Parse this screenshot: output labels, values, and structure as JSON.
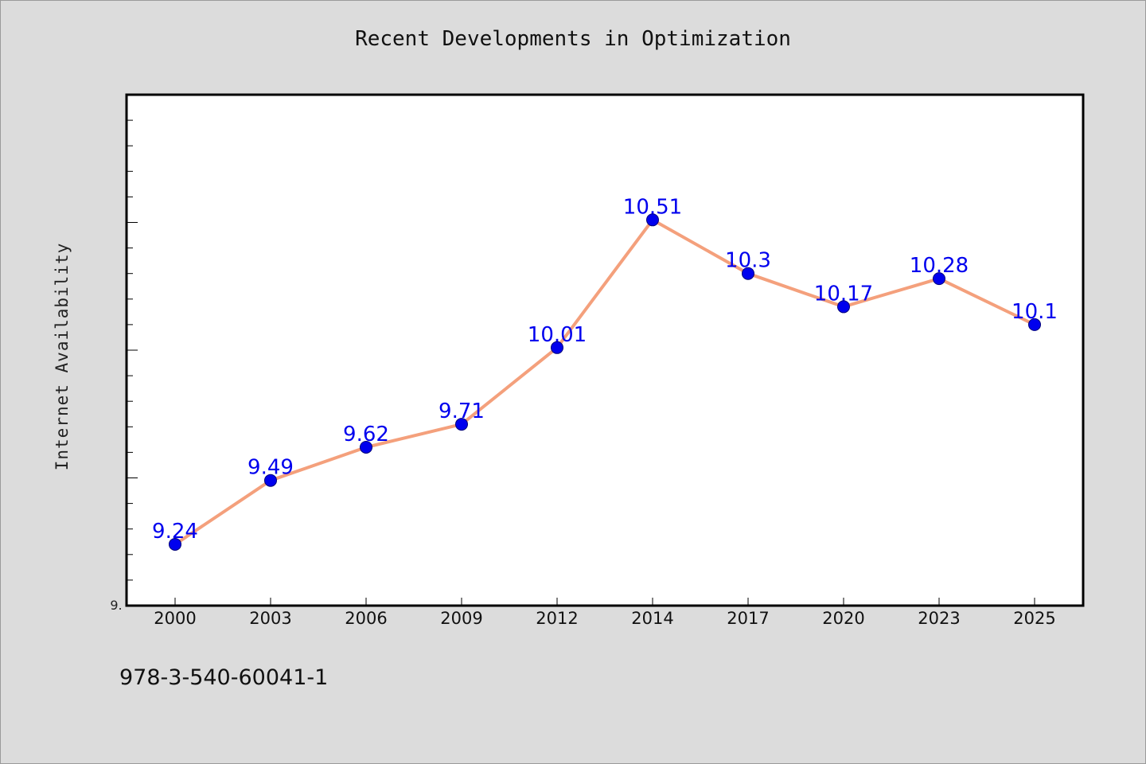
{
  "chart_data": {
    "type": "line",
    "title": "Recent Developments in Optimization",
    "ylabel": "Internet Availability",
    "xlabel": "",
    "categories": [
      "2000",
      "2003",
      "2006",
      "2009",
      "2012",
      "2014",
      "2017",
      "2020",
      "2023",
      "2025"
    ],
    "series": [
      {
        "values": [
          9.24,
          9.49,
          9.62,
          9.71,
          10.01,
          10.51,
          10.3,
          10.17,
          10.28,
          10.1
        ],
        "data_labels": [
          "9.24",
          "9.49",
          "9.62",
          "9.71",
          "10.01",
          "10.51",
          "10.3",
          "10.17",
          "10.28",
          "10.1"
        ]
      }
    ],
    "ylim": [
      9.0,
      11.0
    ],
    "y_tick_label": "9.",
    "line_color": "#f4a07c",
    "marker_color": "#0000ee",
    "label_color": "#0000ee",
    "grid": false
  },
  "footer": {
    "code": "978-3-540-60041-1"
  }
}
